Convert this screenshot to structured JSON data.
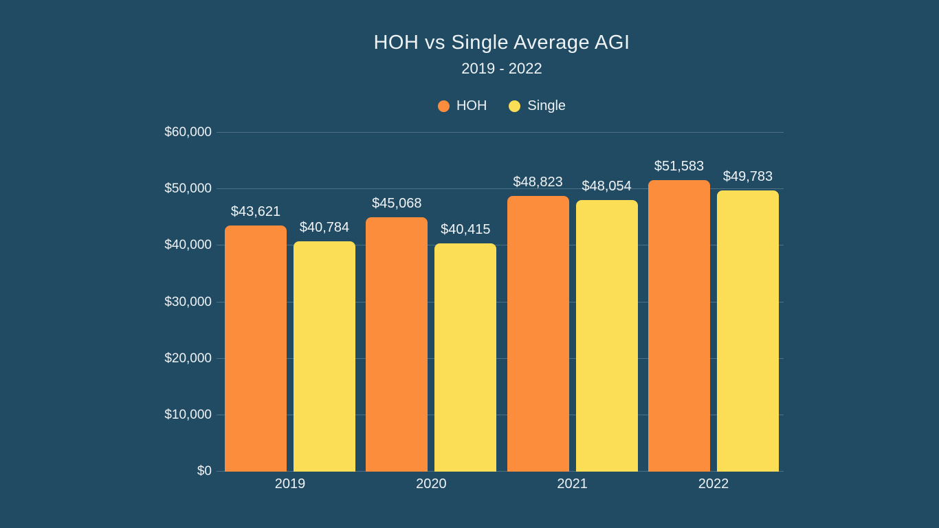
{
  "page": {
    "background": "#214a63",
    "text_color": "#eef3f6"
  },
  "header": {
    "title": "HOH vs Single Average AGI",
    "subtitle": "2019 - 2022"
  },
  "legend": {
    "items": [
      {
        "label": "HOH",
        "color": "#fb8d3d"
      },
      {
        "label": "Single",
        "color": "#fbde55"
      }
    ]
  },
  "chart_data": {
    "type": "bar",
    "title": "HOH vs Single Average AGI",
    "subtitle": "2019 - 2022",
    "categories": [
      "2019",
      "2020",
      "2021",
      "2022"
    ],
    "series": [
      {
        "name": "HOH",
        "color": "#fb8d3d",
        "values": [
          43621,
          45068,
          48823,
          51583
        ],
        "labels": [
          "$43,621",
          "$45,068",
          "$48,823",
          "$51,583"
        ]
      },
      {
        "name": "Single",
        "color": "#fbde55",
        "values": [
          40784,
          40415,
          48054,
          49783
        ],
        "labels": [
          "$40,784",
          "$40,415",
          "$48,054",
          "$49,783"
        ]
      }
    ],
    "xlabel": "",
    "ylabel": "",
    "ylim": [
      0,
      60000
    ],
    "grid": true,
    "legend_position": "top",
    "yticks": [
      {
        "value": 0,
        "label": "$0"
      },
      {
        "value": 10000,
        "label": "$10,000"
      },
      {
        "value": 20000,
        "label": "$20,000"
      },
      {
        "value": 30000,
        "label": "$30,000"
      },
      {
        "value": 40000,
        "label": "$40,000"
      },
      {
        "value": 50000,
        "label": "$50,000"
      },
      {
        "value": 60000,
        "label": "$60,000"
      }
    ]
  }
}
